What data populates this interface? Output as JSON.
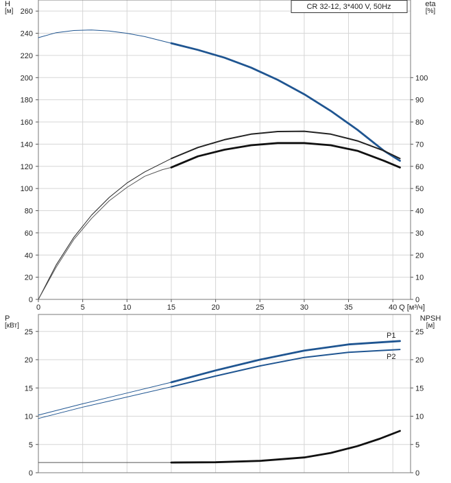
{
  "chart_data": [
    {
      "type": "line",
      "legend_box": "CR 32-12, 3*400 V, 50Hz",
      "xlabel": "Q [м³/ч]",
      "xlim": [
        0,
        42
      ],
      "xticks": [
        0,
        5,
        10,
        15,
        20,
        25,
        30,
        35,
        40
      ],
      "ylabel_left": "H\n[м]",
      "ylim_left": [
        0,
        270
      ],
      "yticks_left": [
        0,
        20,
        40,
        60,
        80,
        100,
        120,
        140,
        160,
        180,
        200,
        220,
        240,
        260
      ],
      "ylabel_right": "eta\n[%]",
      "ylim_right": [
        0,
        135
      ],
      "yticks_right": [
        0,
        10,
        20,
        30,
        40,
        50,
        60,
        70,
        80,
        90,
        100
      ],
      "grid": true,
      "series": [
        {
          "axis": "left",
          "color": "#1f5591",
          "x": [
            0,
            2,
            4,
            6,
            8,
            10,
            12,
            14,
            15
          ],
          "y": [
            236,
            240.5,
            242.5,
            243,
            242,
            240,
            237,
            233,
            231
          ],
          "style": "thin"
        },
        {
          "axis": "left",
          "color": "#1f5591",
          "x": [
            15,
            18,
            21,
            24,
            27,
            30,
            33,
            36,
            39,
            40.8
          ],
          "y": [
            231,
            225,
            218,
            209,
            198,
            185,
            170,
            153,
            134,
            125
          ],
          "style": "thick"
        },
        {
          "axis": "right",
          "color": "#222222",
          "x": [
            0,
            2,
            4,
            6,
            8,
            10,
            12,
            14,
            15
          ],
          "y": [
            0,
            15.5,
            28,
            38,
            46,
            52.5,
            57.5,
            61.5,
            63.5
          ],
          "style": "thin"
        },
        {
          "axis": "right",
          "color": "#222222",
          "x": [
            15,
            18,
            21,
            24,
            27,
            30,
            33,
            36,
            39,
            40.8
          ],
          "y": [
            63.5,
            68.5,
            72,
            74.5,
            75.7,
            75.8,
            74.5,
            71.5,
            67,
            63.5
          ],
          "style": "medium"
        },
        {
          "axis": "right",
          "color": "#555555",
          "x": [
            0,
            2,
            4,
            6,
            8,
            10,
            12,
            14,
            15
          ],
          "y": [
            0,
            14.5,
            27,
            36.5,
            44.5,
            50.5,
            55.5,
            58.5,
            59.5
          ],
          "style": "thin"
        },
        {
          "axis": "right",
          "color": "#111111",
          "x": [
            15,
            18,
            21,
            24,
            27,
            30,
            33,
            36,
            39,
            40.8
          ],
          "y": [
            59.5,
            64.5,
            67.5,
            69.5,
            70.5,
            70.5,
            69.5,
            67,
            62.5,
            59.5
          ],
          "style": "thick"
        }
      ]
    },
    {
      "type": "line",
      "xlim": [
        0,
        42
      ],
      "ylabel_left": "P\n[кВт]",
      "ylim_left": [
        0,
        28
      ],
      "yticks_left": [
        0,
        5,
        10,
        15,
        20,
        25
      ],
      "ylabel_right": "NPSH\n[м]",
      "ylim_right": [
        0,
        28
      ],
      "yticks_right": [
        0,
        5,
        10,
        15,
        20,
        25
      ],
      "grid": true,
      "series": [
        {
          "name": "P1",
          "axis": "left",
          "color": "#1f5591",
          "x": [
            0,
            5,
            10,
            15
          ],
          "y": [
            10.2,
            12.2,
            14.1,
            16.0
          ],
          "style": "thin"
        },
        {
          "name": "P1",
          "axis": "left",
          "color": "#1f5591",
          "x": [
            15,
            20,
            25,
            30,
            35,
            40.8
          ],
          "y": [
            16.0,
            18.1,
            20.0,
            21.6,
            22.7,
            23.3
          ],
          "style": "thick"
        },
        {
          "name": "P2",
          "axis": "left",
          "color": "#1f5591",
          "x": [
            0,
            5,
            10,
            15
          ],
          "y": [
            9.6,
            11.6,
            13.4,
            15.2
          ],
          "style": "thin"
        },
        {
          "name": "P2",
          "axis": "left",
          "color": "#1f5591",
          "x": [
            15,
            20,
            25,
            30,
            35,
            40.8
          ],
          "y": [
            15.2,
            17.1,
            18.9,
            20.4,
            21.3,
            21.8
          ],
          "style": "medium"
        },
        {
          "axis": "right",
          "color": "#555555",
          "x": [
            0,
            15
          ],
          "y": [
            1.8,
            1.8
          ],
          "style": "thin"
        },
        {
          "axis": "right",
          "color": "#111111",
          "x": [
            15,
            20,
            25,
            30,
            33,
            36,
            38.5,
            40.8
          ],
          "y": [
            1.8,
            1.85,
            2.1,
            2.7,
            3.5,
            4.7,
            6.0,
            7.4
          ],
          "style": "thick"
        }
      ]
    }
  ]
}
